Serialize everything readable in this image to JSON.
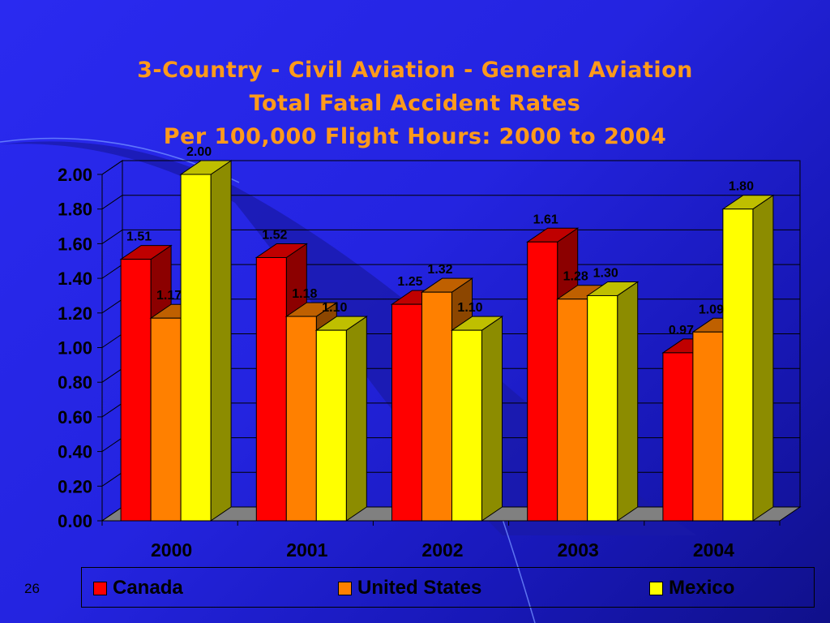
{
  "slide": {
    "title_lines": [
      "3-Country - Civil Aviation - General Aviation",
      "Total Fatal Accident Rates",
      "Per 100,000 Flight Hours: 2000 to 2004"
    ],
    "page_number": "26"
  },
  "chart_data": {
    "type": "bar",
    "categories": [
      "2000",
      "2001",
      "2002",
      "2003",
      "2004"
    ],
    "series": [
      {
        "name": "Canada",
        "values": [
          1.51,
          1.52,
          1.25,
          1.61,
          0.97
        ],
        "color": "#ff0000"
      },
      {
        "name": "United States",
        "values": [
          1.17,
          1.18,
          1.32,
          1.28,
          1.09
        ],
        "color": "#ff8000"
      },
      {
        "name": "Mexico",
        "values": [
          2.0,
          1.1,
          1.1,
          1.3,
          1.8
        ],
        "color": "#ffff00"
      }
    ],
    "ylim": [
      0,
      2.0
    ],
    "yticks": [
      "0.00",
      "0.20",
      "0.40",
      "0.60",
      "0.80",
      "1.00",
      "1.20",
      "1.40",
      "1.60",
      "1.80",
      "2.00"
    ],
    "grid": true,
    "legend_position": "bottom",
    "style": "3d-column"
  }
}
